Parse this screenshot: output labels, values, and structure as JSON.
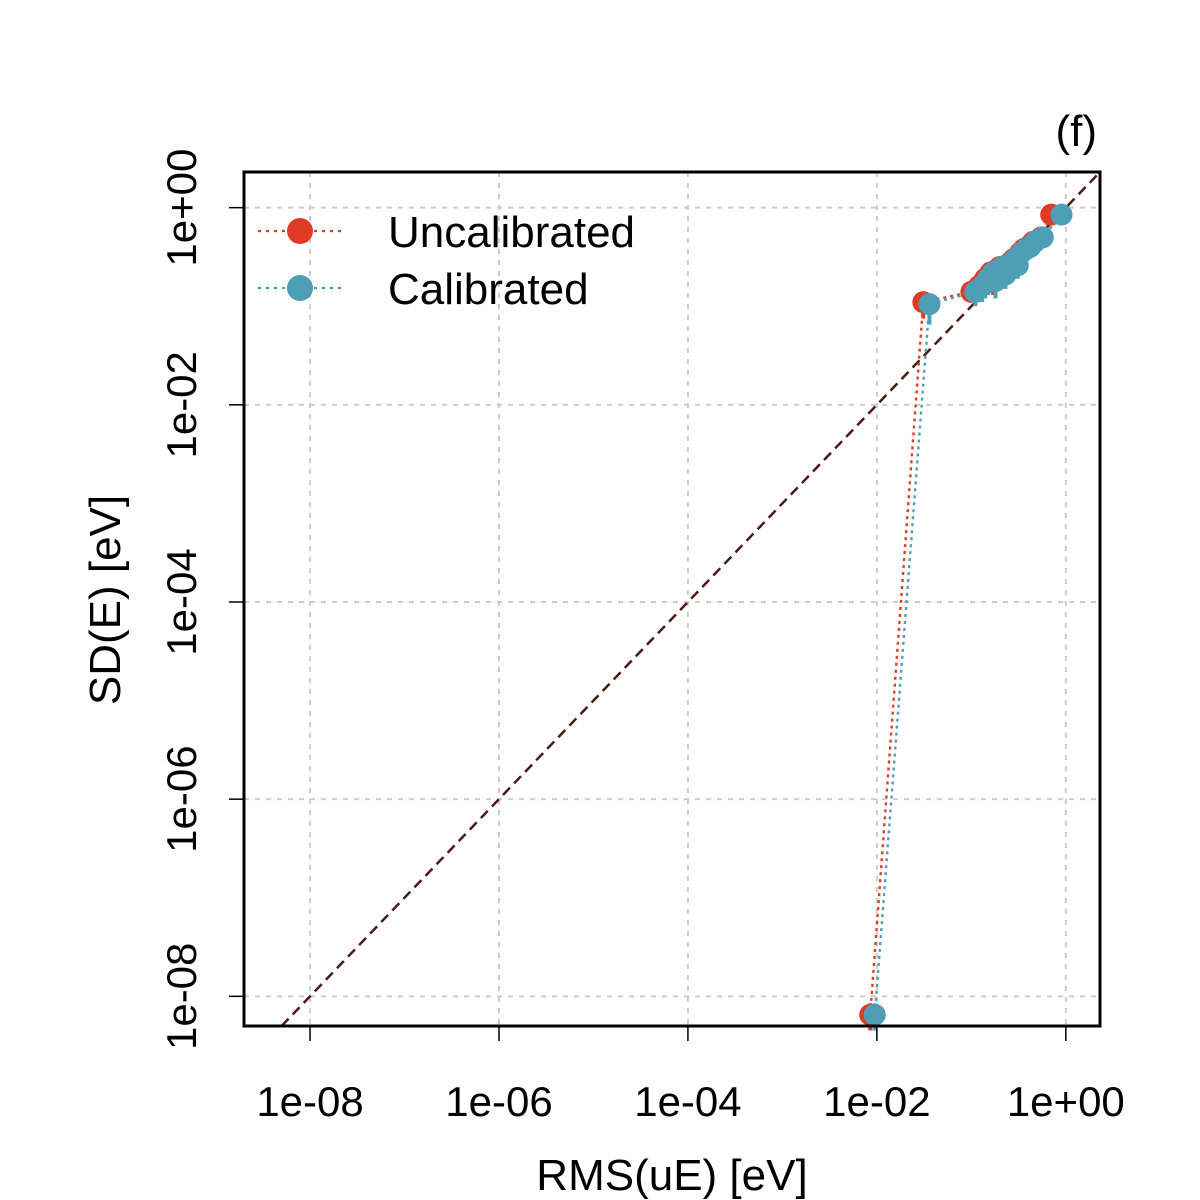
{
  "chart_data": {
    "type": "scatter",
    "panel_label": "(f)",
    "xlabel": "RMS(uE) [eV]",
    "ylabel": "SD(E) [eV]",
    "x_scale": "log",
    "y_scale": "log",
    "xlim": [
      2e-09,
      2.3
    ],
    "ylim": [
      5e-09,
      2.3
    ],
    "x_ticks": [
      {
        "value": 1e-08,
        "label": "1e-08"
      },
      {
        "value": 1e-06,
        "label": "1e-06"
      },
      {
        "value": 0.0001,
        "label": "1e-04"
      },
      {
        "value": 0.01,
        "label": "1e-02"
      },
      {
        "value": 1,
        "label": "1e+00"
      }
    ],
    "y_ticks": [
      {
        "value": 1e-08,
        "label": "1e-08"
      },
      {
        "value": 1e-06,
        "label": "1e-06"
      },
      {
        "value": 0.0001,
        "label": "1e-04"
      },
      {
        "value": 0.01,
        "label": "1e-02"
      },
      {
        "value": 1,
        "label": "1e+00"
      }
    ],
    "grid": true,
    "identity_line": true,
    "legend_position": "top-left",
    "series": [
      {
        "name": "Uncalibrated",
        "color": "#E03B24",
        "x": [
          0.0085,
          0.031,
          0.1,
          0.12,
          0.13,
          0.14,
          0.15,
          0.16,
          0.17,
          0.18,
          0.2,
          0.22,
          0.25,
          0.28,
          0.3,
          0.33,
          0.36,
          0.4,
          0.45,
          0.55,
          0.7
        ],
        "y": [
          6.5e-09,
          0.11,
          0.14,
          0.16,
          0.17,
          0.19,
          0.2,
          0.22,
          0.18,
          0.23,
          0.25,
          0.21,
          0.27,
          0.3,
          0.26,
          0.35,
          0.38,
          0.4,
          0.45,
          0.5,
          0.85
        ],
        "y_lower": [
          4.5e-09,
          0.075,
          0.11,
          0.12,
          0.13,
          0.14,
          0.15,
          0.16,
          0.13,
          0.17,
          0.19,
          0.16,
          0.21,
          0.23,
          0.2,
          0.27,
          0.3,
          0.32,
          0.36,
          0.4,
          0.7
        ],
        "y_upper": [
          8.5e-09,
          0.135,
          0.17,
          0.2,
          0.21,
          0.24,
          0.25,
          0.28,
          0.23,
          0.29,
          0.31,
          0.27,
          0.34,
          0.38,
          0.33,
          0.44,
          0.47,
          0.5,
          0.55,
          0.6,
          1.0
        ]
      },
      {
        "name": "Calibrated",
        "color": "#4E9FB5",
        "x": [
          0.0095,
          0.036,
          0.11,
          0.13,
          0.14,
          0.15,
          0.16,
          0.17,
          0.18,
          0.19,
          0.21,
          0.23,
          0.26,
          0.29,
          0.31,
          0.34,
          0.38,
          0.42,
          0.47,
          0.57,
          0.9
        ],
        "y": [
          6.5e-09,
          0.105,
          0.14,
          0.16,
          0.17,
          0.19,
          0.2,
          0.22,
          0.18,
          0.23,
          0.25,
          0.21,
          0.27,
          0.3,
          0.26,
          0.35,
          0.38,
          0.4,
          0.45,
          0.5,
          0.85
        ],
        "y_lower": [
          4.5e-09,
          0.065,
          0.1,
          0.11,
          0.12,
          0.13,
          0.14,
          0.15,
          0.12,
          0.16,
          0.18,
          0.15,
          0.2,
          0.22,
          0.19,
          0.26,
          0.29,
          0.31,
          0.35,
          0.39,
          0.7
        ],
        "y_upper": [
          8.5e-09,
          0.125,
          0.17,
          0.2,
          0.21,
          0.24,
          0.25,
          0.28,
          0.23,
          0.29,
          0.31,
          0.27,
          0.34,
          0.38,
          0.33,
          0.44,
          0.47,
          0.5,
          0.55,
          0.6,
          1.0
        ]
      }
    ],
    "colors": {
      "identity_line": "#4A1A14",
      "grid": "#CCCCCC",
      "axis": "#000000"
    }
  }
}
